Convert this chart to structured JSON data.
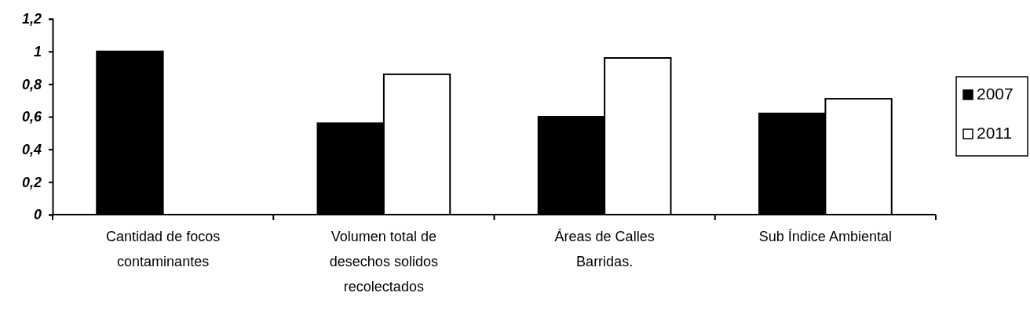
{
  "chart_data": {
    "type": "bar",
    "categories": [
      "Cantidad de focos contaminantes",
      "Volumen total de desechos solidos recolectados",
      "Áreas de Calles Barridas.",
      "Sub Índice Ambiental"
    ],
    "series": [
      {
        "name": "2007",
        "color": "#000000",
        "values": [
          1.0,
          0.56,
          0.6,
          0.62
        ]
      },
      {
        "name": "2011",
        "color": "#ffffff",
        "values": [
          null,
          0.86,
          0.96,
          0.71
        ]
      }
    ],
    "ylim": [
      0,
      1.2
    ],
    "yticks": [
      {
        "value": 0,
        "label": "0"
      },
      {
        "value": 0.2,
        "label": "0,2"
      },
      {
        "value": 0.4,
        "label": "0,4"
      },
      {
        "value": 0.6,
        "label": "0,6"
      },
      {
        "value": 0.8,
        "label": "0,8"
      },
      {
        "value": 1,
        "label": "1"
      },
      {
        "value": 1.2,
        "label": "1,2"
      }
    ],
    "legend": "right",
    "grid": false
  }
}
